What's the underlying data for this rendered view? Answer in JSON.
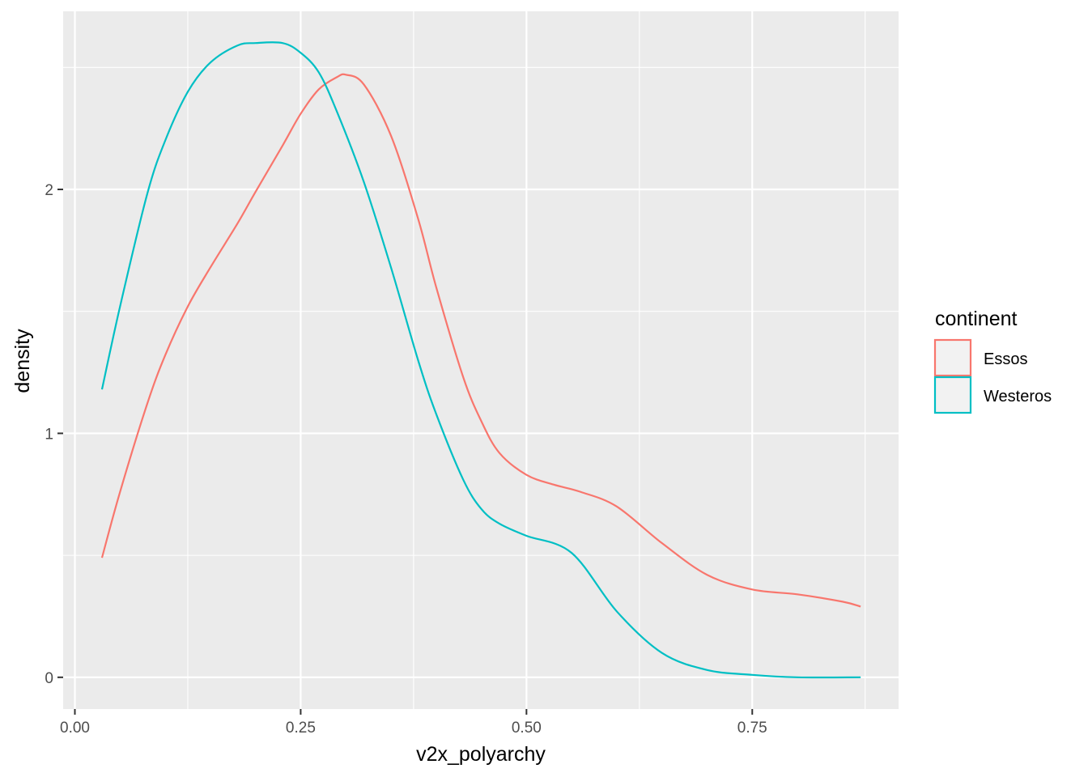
{
  "chart_data": {
    "type": "line",
    "kind": "density",
    "xlabel": "v2x_polyarchy",
    "ylabel": "density",
    "xlim": [
      -0.013,
      0.912
    ],
    "ylim": [
      -0.13,
      2.73
    ],
    "x_ticks": [
      0.0,
      0.25,
      0.5,
      0.75
    ],
    "x_tick_labels": [
      "0.00",
      "0.25",
      "0.50",
      "0.75"
    ],
    "x_minor_ticks": [
      0.125,
      0.375,
      0.625,
      0.875
    ],
    "y_ticks": [
      0,
      1,
      2
    ],
    "y_tick_labels": [
      "0",
      "1",
      "2"
    ],
    "y_minor_ticks": [
      0.5,
      1.5,
      2.5
    ],
    "grid": true,
    "panel_background": "#ebebeb",
    "legend": {
      "title": "continent",
      "position": "right",
      "entries": [
        "Essos",
        "Westeros"
      ]
    },
    "series": [
      {
        "name": "Essos",
        "color": "#f8766d",
        "x": [
          0.03,
          0.05,
          0.08,
          0.1,
          0.125,
          0.15,
          0.18,
          0.2,
          0.23,
          0.25,
          0.27,
          0.29,
          0.3,
          0.32,
          0.35,
          0.38,
          0.4,
          0.43,
          0.45,
          0.47,
          0.5,
          0.53,
          0.56,
          0.6,
          0.65,
          0.7,
          0.75,
          0.8,
          0.85,
          0.87
        ],
        "y": [
          0.49,
          0.76,
          1.12,
          1.32,
          1.52,
          1.68,
          1.86,
          1.99,
          2.18,
          2.31,
          2.41,
          2.46,
          2.47,
          2.43,
          2.22,
          1.88,
          1.6,
          1.23,
          1.05,
          0.92,
          0.83,
          0.79,
          0.76,
          0.7,
          0.55,
          0.42,
          0.36,
          0.34,
          0.31,
          0.29
        ]
      },
      {
        "name": "Westeros",
        "color": "#00bfc4",
        "x": [
          0.03,
          0.05,
          0.08,
          0.1,
          0.125,
          0.15,
          0.18,
          0.2,
          0.23,
          0.25,
          0.27,
          0.29,
          0.32,
          0.35,
          0.38,
          0.4,
          0.43,
          0.45,
          0.47,
          0.5,
          0.55,
          0.6,
          0.65,
          0.7,
          0.75,
          0.8,
          0.87
        ],
        "y": [
          1.18,
          1.52,
          1.98,
          2.2,
          2.4,
          2.52,
          2.59,
          2.6,
          2.6,
          2.56,
          2.48,
          2.32,
          2.03,
          1.68,
          1.3,
          1.08,
          0.81,
          0.69,
          0.63,
          0.58,
          0.51,
          0.27,
          0.1,
          0.03,
          0.01,
          0.0,
          0.0
        ]
      }
    ]
  }
}
